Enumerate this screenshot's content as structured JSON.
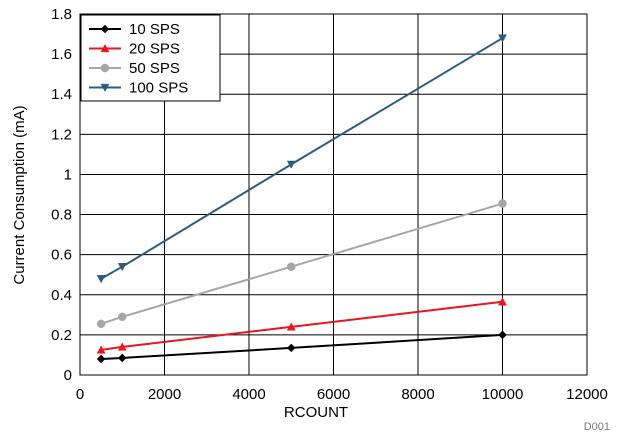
{
  "chart_data": {
    "type": "line",
    "title": "",
    "xlabel": "RCOUNT",
    "ylabel": "Current Consumption (mA)",
    "xlim": [
      0,
      12000
    ],
    "ylim": [
      0,
      1.8
    ],
    "x_ticks": [
      "0",
      "2000",
      "4000",
      "6000",
      "8000",
      "10000",
      "12000"
    ],
    "y_ticks": [
      "0",
      "0.2",
      "0.4",
      "0.6",
      "0.8",
      "1",
      "1.2",
      "1.4",
      "1.6",
      "1.8"
    ],
    "grid": true,
    "legend_position": "top-left",
    "x": [
      500,
      1000,
      5000,
      10000
    ],
    "series": [
      {
        "name": "10 SPS",
        "color": "#000000",
        "marker": "diamond",
        "values": [
          0.08,
          0.085,
          0.135,
          0.2
        ]
      },
      {
        "name": "20 SPS",
        "color": "#e8161d",
        "marker": "triangle-up",
        "values": [
          0.125,
          0.14,
          0.24,
          0.365
        ]
      },
      {
        "name": "50 SPS",
        "color": "#a6a6a6",
        "marker": "circle",
        "values": [
          0.255,
          0.29,
          0.54,
          0.855
        ]
      },
      {
        "name": "100 SPS",
        "color": "#2c5d80",
        "marker": "triangle-down",
        "values": [
          0.48,
          0.54,
          1.05,
          1.68
        ]
      }
    ],
    "footnote": "D001"
  }
}
